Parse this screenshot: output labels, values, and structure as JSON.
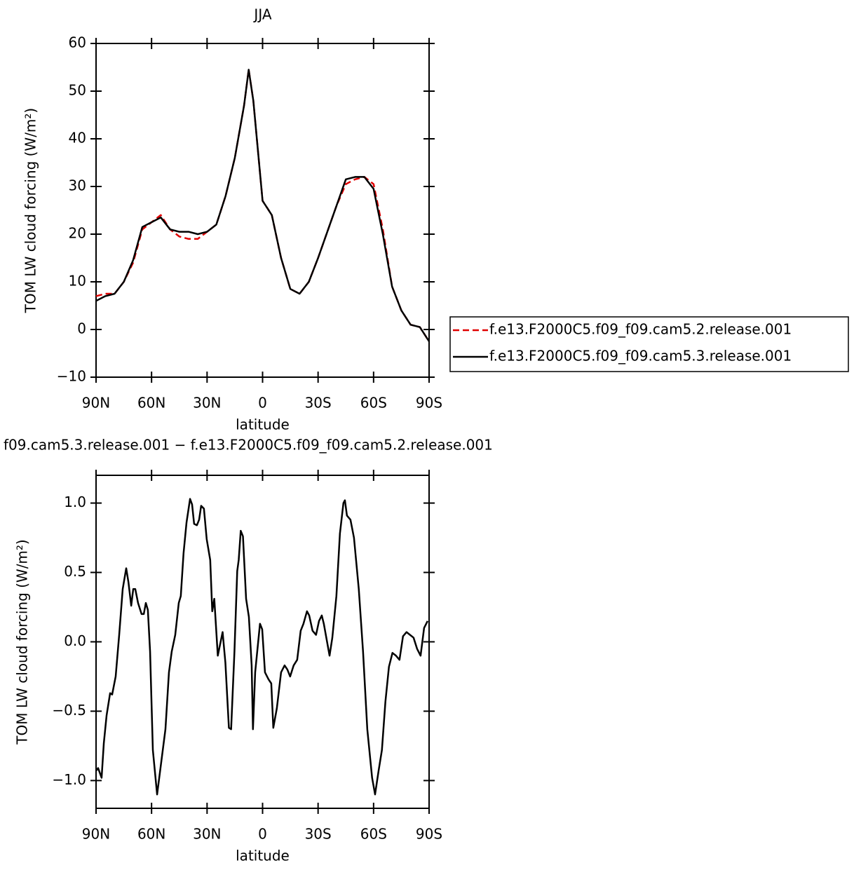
{
  "chart_data": [
    {
      "type": "line",
      "title": "JJA",
      "x_label": "latitude",
      "y_label": "TOM LW cloud forcing (W/m²)",
      "x": [
        90,
        85,
        80,
        75,
        70,
        65,
        60,
        55,
        50,
        45,
        40,
        35,
        30,
        25,
        20,
        15,
        10,
        7.5,
        5,
        0,
        -5,
        -10,
        -15,
        -20,
        -25,
        -30,
        -35,
        -40,
        -45,
        -50,
        -55,
        -60,
        -65,
        -70,
        -75,
        -80,
        -85,
        -90
      ],
      "series": [
        {
          "name": "f.e13.F2000C5.f09_f09.cam5.2.release.001",
          "color": "#e00000",
          "line_style": "dashed",
          "values": [
            7,
            7.5,
            7.5,
            10,
            14,
            21,
            22.5,
            24,
            21,
            19.5,
            19,
            19,
            20.5,
            22,
            28,
            36,
            47,
            54.5,
            48,
            27,
            24,
            15,
            8.5,
            7.5,
            10,
            15,
            20.5,
            26,
            30.5,
            31.5,
            32,
            30.5,
            21,
            9,
            4,
            1,
            0.5,
            -2.5
          ]
        },
        {
          "name": "f.e13.F2000C5.f09_f09.cam5.3.release.001",
          "color": "#000000",
          "line_style": "solid",
          "values": [
            6,
            7,
            7.5,
            10,
            14.5,
            21.5,
            22.5,
            23.5,
            21,
            20.5,
            20.5,
            20,
            20.5,
            22,
            28,
            36,
            47,
            54.5,
            48,
            27,
            24,
            15,
            8.5,
            7.5,
            10,
            15,
            20.5,
            26,
            31.5,
            32,
            32,
            29.5,
            20,
            9,
            4,
            1,
            0.5,
            -2.5
          ]
        }
      ],
      "xlim": [
        90,
        -90
      ],
      "xticks": [
        {
          "value": 90,
          "label": "90N"
        },
        {
          "value": 60,
          "label": "60N"
        },
        {
          "value": 30,
          "label": "30N"
        },
        0,
        {
          "value": -30,
          "label": "30S"
        },
        {
          "value": -60,
          "label": "60S"
        },
        {
          "value": -90,
          "label": "90S"
        }
      ],
      "ylim": [
        -10,
        60
      ],
      "yticks": [
        {
          "value": -10,
          "label": "−10"
        },
        0,
        10,
        20,
        30,
        40,
        50,
        60
      ],
      "legend": "right"
    },
    {
      "type": "line",
      "title": "f09.cam5.3.release.001 − f.e13.F2000C5.f09_f09.cam5.2.release.001",
      "x_label": "latitude",
      "y_label": "TOM LW cloud forcing (W/m²)",
      "x": [
        90,
        88.9,
        87,
        85.8,
        84.3,
        82.4,
        81.3,
        79.4,
        77.5,
        75.6,
        73.7,
        72.5,
        71,
        69.9,
        68.8,
        67.3,
        65.4,
        64.2,
        63.1,
        62,
        60.8,
        59.3,
        57,
        54.7,
        52.5,
        50.6,
        49.1,
        47.2,
        45.3,
        44.2,
        42.7,
        41.1,
        39.2,
        38.1,
        37,
        35.5,
        34.3,
        33.2,
        31.7,
        30.2,
        28.3,
        27.2,
        26.1,
        24.2,
        21.6,
        20.1,
        18.2,
        17,
        15.2,
        13.7,
        12.9,
        11.8,
        10.6,
        8.9,
        7.4,
        5.9,
        5.2,
        4,
        1.4,
        0.2,
        -1.3,
        -3.2,
        -4.7,
        -5.8,
        -7.7,
        -10,
        -11.9,
        -13.4,
        -14.9,
        -16.8,
        -18.7,
        -20.6,
        -22.1,
        -24,
        -25.2,
        -27,
        -28.9,
        -30.5,
        -32,
        -33.1,
        -36.2,
        -37.7,
        -39.9,
        -41.8,
        -43.7,
        -44.5,
        -45.6,
        -47.5,
        -49.4,
        -52,
        -54.3,
        -56.6,
        -59.2,
        -60.8,
        -62.7,
        -64.5,
        -66.4,
        -68.3,
        -70.2,
        -72.1,
        -74,
        -75.9,
        -77.8,
        -79.7,
        -81.6,
        -83.5,
        -85.4,
        -87.3,
        -89.2
      ],
      "series": [
        {
          "color": "#000000",
          "line_style": "solid",
          "values": [
            -0.93,
            -0.91,
            -0.98,
            -0.73,
            -0.53,
            -0.37,
            -0.38,
            -0.25,
            0.05,
            0.38,
            0.53,
            0.43,
            0.26,
            0.38,
            0.38,
            0.28,
            0.2,
            0.2,
            0.28,
            0.23,
            -0.07,
            -0.78,
            -1.1,
            -0.86,
            -0.63,
            -0.22,
            -0.07,
            0.05,
            0.28,
            0.33,
            0.64,
            0.86,
            1.03,
            0.99,
            0.85,
            0.84,
            0.88,
            0.98,
            0.96,
            0.74,
            0.59,
            0.22,
            0.31,
            -0.1,
            0.07,
            -0.15,
            -0.62,
            -0.63,
            -0.07,
            0.51,
            0.59,
            0.8,
            0.76,
            0.31,
            0.18,
            -0.17,
            -0.63,
            -0.22,
            0.13,
            0.09,
            -0.22,
            -0.27,
            -0.3,
            -0.62,
            -0.48,
            -0.22,
            -0.17,
            -0.2,
            -0.25,
            -0.17,
            -0.13,
            0.08,
            0.13,
            0.22,
            0.19,
            0.08,
            0.05,
            0.15,
            0.19,
            0.13,
            -0.1,
            0.03,
            0.33,
            0.78,
            1,
            1.02,
            0.91,
            0.88,
            0.75,
            0.38,
            -0.07,
            -0.63,
            -0.98,
            -1.1,
            -0.93,
            -0.78,
            -0.43,
            -0.18,
            -0.08,
            -0.1,
            -0.13,
            0.04,
            0.07,
            0.05,
            0.03,
            -0.05,
            -0.1,
            0.1,
            0.15
          ]
        }
      ],
      "xlim": [
        90,
        -90
      ],
      "xticks": [
        {
          "value": 90,
          "label": "90N"
        },
        {
          "value": 60,
          "label": "60N"
        },
        {
          "value": 30,
          "label": "30N"
        },
        0,
        {
          "value": -30,
          "label": "30S"
        },
        {
          "value": -60,
          "label": "60S"
        },
        {
          "value": -90,
          "label": "90S"
        }
      ],
      "ylim": [
        -1.2,
        1.2
      ],
      "yticks": [
        {
          "value": -1,
          "label": "−1.0"
        },
        {
          "value": -0.5,
          "label": "−0.5"
        },
        {
          "value": 0,
          "label": "0.0"
        },
        0.5,
        {
          "value": 1,
          "label": "1.0"
        }
      ]
    }
  ]
}
